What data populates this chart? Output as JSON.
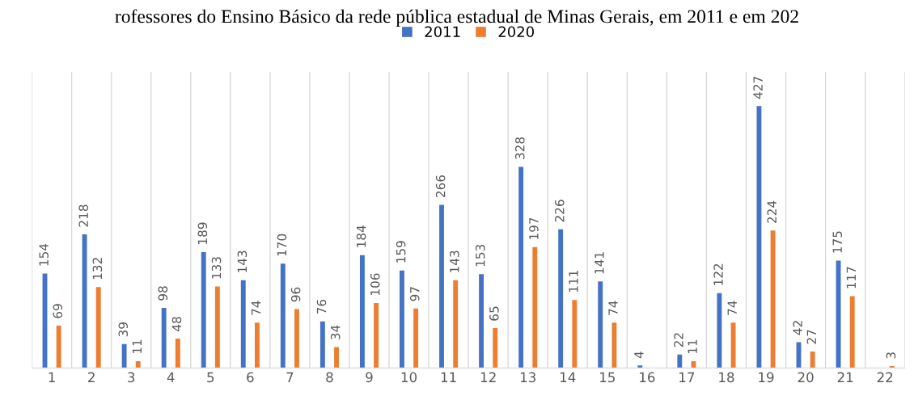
{
  "chart_data": {
    "type": "bar",
    "title": "rofessores do Ensino Básico da rede pública estadual de Minas Gerais, em 2011 e em 202",
    "categories": [
      "1",
      "2",
      "3",
      "4",
      "5",
      "6",
      "7",
      "8",
      "9",
      "10",
      "11",
      "12",
      "13",
      "14",
      "15",
      "16",
      "17",
      "18",
      "19",
      "20",
      "21",
      "22"
    ],
    "series": [
      {
        "name": "2011",
        "color": "#4472c4",
        "values": [
          154,
          218,
          39,
          98,
          189,
          143,
          170,
          76,
          184,
          159,
          266,
          153,
          328,
          226,
          141,
          4,
          22,
          122,
          427,
          42,
          175,
          null
        ]
      },
      {
        "name": "2020",
        "color": "#ed7d31",
        "values": [
          69,
          132,
          11,
          48,
          133,
          74,
          96,
          34,
          106,
          97,
          143,
          65,
          197,
          111,
          74,
          null,
          11,
          74,
          224,
          27,
          117,
          3
        ]
      }
    ],
    "data_labels": true,
    "grid": "x",
    "legend": "top"
  }
}
